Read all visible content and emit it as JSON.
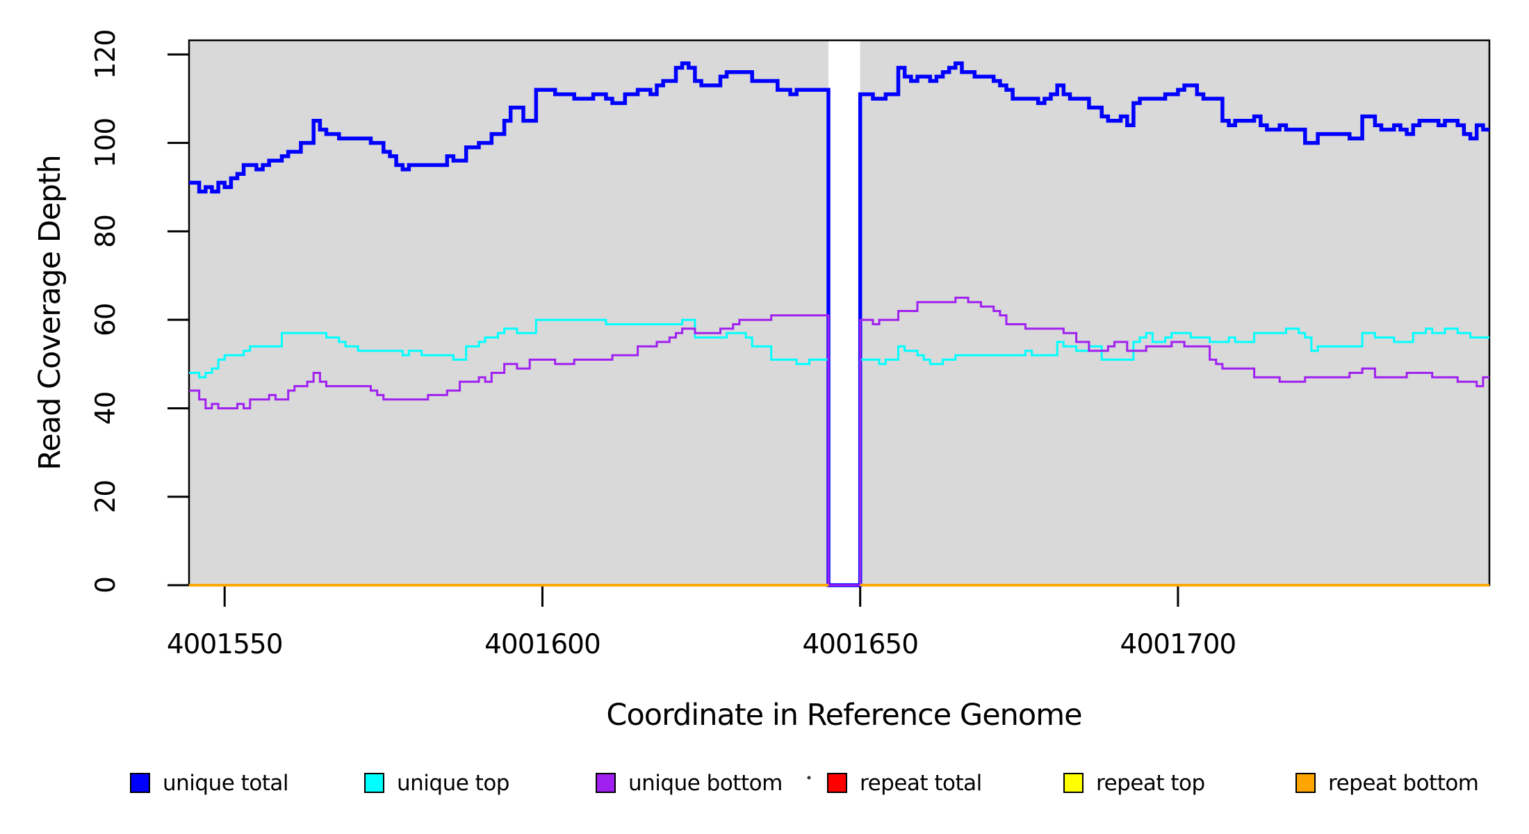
{
  "chart_data": {
    "type": "line",
    "subtype": "step-coverage-plot",
    "title": "",
    "xlabel": "Coordinate in Reference Genome",
    "ylabel": "Read Coverage Depth",
    "plot_bg_color": "#d9d9d9",
    "page_bg_color": "#ffffff",
    "x_axis": {
      "range": [
        4001544.4,
        4001749.0
      ],
      "ticks": [
        4001550,
        4001600,
        4001650,
        4001700
      ],
      "tick_labels": [
        "4001550",
        "4001600",
        "4001650",
        "4001700"
      ]
    },
    "y_axis": {
      "range": [
        0,
        123.2
      ],
      "ticks": [
        0,
        20,
        40,
        60,
        80,
        100,
        120
      ],
      "tick_labels": [
        "0",
        "20",
        "40",
        "60",
        "80",
        "100",
        "120"
      ]
    },
    "gap_region": {
      "x0": 4001645,
      "x1": 4001650,
      "color": "#ffffff",
      "note": "zero-coverage gap, background white"
    },
    "x_start": 4001545,
    "x_step": 1,
    "series": [
      {
        "name": "unique total",
        "color": "#0000ff",
        "line_width": 5.5,
        "values": [
          91,
          89,
          90,
          89,
          91,
          90,
          92,
          93,
          95,
          95,
          94,
          95,
          96,
          96,
          97,
          98,
          98,
          100,
          100,
          105,
          103,
          102,
          102,
          101,
          101,
          101,
          101,
          101,
          100,
          100,
          98,
          97,
          95,
          94,
          95,
          95,
          95,
          95,
          95,
          95,
          97,
          96,
          96,
          99,
          99,
          100,
          100,
          102,
          102,
          105,
          108,
          108,
          105,
          105,
          112,
          112,
          112,
          111,
          111,
          111,
          110,
          110,
          110,
          111,
          111,
          110,
          109,
          109,
          111,
          111,
          112,
          112,
          111,
          113,
          114,
          114,
          117,
          118,
          117,
          114,
          113,
          113,
          113,
          115,
          116,
          116,
          116,
          116,
          114,
          114,
          114,
          114,
          112,
          112,
          111,
          112,
          112,
          112,
          112,
          112,
          0,
          0,
          0,
          0,
          0,
          111,
          111,
          110,
          110,
          111,
          111,
          117,
          115,
          114,
          115,
          115,
          114,
          115,
          116,
          117,
          118,
          116,
          116,
          115,
          115,
          115,
          114,
          113,
          112,
          110,
          110,
          110,
          110,
          109,
          110,
          111,
          113,
          111,
          110,
          110,
          110,
          108,
          108,
          106,
          105,
          105,
          106,
          104,
          109,
          110,
          110,
          110,
          110,
          111,
          111,
          112,
          113,
          113,
          111,
          110,
          110,
          110,
          105,
          104,
          105,
          105,
          105,
          106,
          104,
          103,
          103,
          104,
          103,
          103,
          103,
          100,
          100,
          102,
          102,
          102,
          102,
          102,
          101,
          101,
          106,
          106,
          104,
          103,
          103,
          104,
          103,
          102,
          104,
          105,
          105,
          105,
          104,
          105,
          105,
          104,
          102,
          101,
          104,
          103
        ]
      },
      {
        "name": "unique top",
        "color": "#00ffff",
        "line_width": 3,
        "values": [
          48,
          47,
          48,
          49,
          51,
          52,
          52,
          52,
          53,
          54,
          54,
          54,
          54,
          54,
          57,
          57,
          57,
          57,
          57,
          57,
          57,
          56,
          56,
          55,
          54,
          54,
          53,
          53,
          53,
          53,
          53,
          53,
          53,
          52,
          53,
          53,
          52,
          52,
          52,
          52,
          52,
          51,
          51,
          54,
          54,
          55,
          56,
          56,
          57,
          58,
          58,
          57,
          57,
          57,
          60,
          60,
          60,
          60,
          60,
          60,
          60,
          60,
          60,
          60,
          60,
          59,
          59,
          59,
          59,
          59,
          59,
          59,
          59,
          59,
          59,
          59,
          59,
          60,
          60,
          56,
          56,
          56,
          56,
          56,
          57,
          57,
          57,
          56,
          54,
          54,
          54,
          51,
          51,
          51,
          51,
          50,
          50,
          51,
          51,
          51,
          0,
          0,
          0,
          0,
          0,
          51,
          51,
          51,
          50,
          51,
          51,
          54,
          53,
          53,
          52,
          51,
          50,
          50,
          51,
          51,
          52,
          52,
          52,
          52,
          52,
          52,
          52,
          52,
          52,
          52,
          52,
          53,
          52,
          52,
          52,
          52,
          55,
          54,
          54,
          53,
          53,
          54,
          54,
          51,
          51,
          51,
          51,
          51,
          55,
          56,
          57,
          55,
          55,
          56,
          57,
          57,
          57,
          56,
          56,
          56,
          55,
          55,
          55,
          56,
          55,
          55,
          55,
          57,
          57,
          57,
          57,
          57,
          58,
          58,
          57,
          56,
          53,
          54,
          54,
          54,
          54,
          54,
          54,
          54,
          57,
          57,
          56,
          56,
          56,
          55,
          55,
          55,
          57,
          57,
          58,
          57,
          57,
          58,
          58,
          57,
          57,
          56,
          56,
          56
        ]
      },
      {
        "name": "unique bottom",
        "color": "#a020f0",
        "line_width": 3,
        "values": [
          44,
          42,
          40,
          41,
          40,
          40,
          40,
          41,
          40,
          42,
          42,
          42,
          43,
          42,
          42,
          44,
          45,
          45,
          46,
          48,
          46,
          45,
          45,
          45,
          45,
          45,
          45,
          45,
          44,
          43,
          42,
          42,
          42,
          42,
          42,
          42,
          42,
          43,
          43,
          43,
          44,
          44,
          46,
          46,
          46,
          47,
          46,
          48,
          48,
          50,
          50,
          49,
          49,
          51,
          51,
          51,
          51,
          50,
          50,
          50,
          51,
          51,
          51,
          51,
          51,
          51,
          52,
          52,
          52,
          52,
          54,
          54,
          54,
          55,
          55,
          56,
          57,
          58,
          58,
          57,
          57,
          57,
          57,
          58,
          58,
          59,
          60,
          60,
          60,
          60,
          60,
          61,
          61,
          61,
          61,
          61,
          61,
          61,
          61,
          61,
          0,
          0,
          0,
          0,
          0,
          60,
          60,
          59,
          60,
          60,
          60,
          62,
          62,
          62,
          64,
          64,
          64,
          64,
          64,
          64,
          65,
          65,
          64,
          64,
          63,
          63,
          62,
          61,
          59,
          59,
          59,
          58,
          58,
          58,
          58,
          58,
          58,
          57,
          57,
          55,
          55,
          53,
          53,
          53,
          54,
          55,
          55,
          53,
          53,
          53,
          54,
          54,
          54,
          54,
          55,
          55,
          54,
          54,
          54,
          54,
          51,
          50,
          49,
          49,
          49,
          49,
          49,
          47,
          47,
          47,
          47,
          46,
          46,
          46,
          46,
          47,
          47,
          47,
          47,
          47,
          47,
          47,
          48,
          48,
          49,
          49,
          47,
          47,
          47,
          47,
          47,
          48,
          48,
          48,
          48,
          47,
          47,
          47,
          47,
          46,
          46,
          46,
          45,
          47
        ]
      },
      {
        "name": "repeat total",
        "color": "#ff0000",
        "line_width": 3.5,
        "constant_value": 0,
        "break_in_gap": true
      },
      {
        "name": "repeat top",
        "color": "#ffff00",
        "line_width": 3.5,
        "constant_value": 0,
        "break_in_gap": true
      },
      {
        "name": "repeat bottom",
        "color": "#ffa500",
        "line_width": 3.5,
        "constant_value": 0,
        "break_in_gap": true
      }
    ],
    "legend": {
      "position": "bottom",
      "items": [
        {
          "label": "unique total",
          "color": "#0000ff"
        },
        {
          "label": "unique top",
          "color": "#00ffff"
        },
        {
          "label": "unique bottom",
          "color": "#a020f0"
        },
        {
          "label": "repeat total",
          "color": "#ff0000"
        },
        {
          "label": "repeat top",
          "color": "#ffff00"
        },
        {
          "label": "repeat bottom",
          "color": "#ffa500"
        }
      ]
    }
  }
}
